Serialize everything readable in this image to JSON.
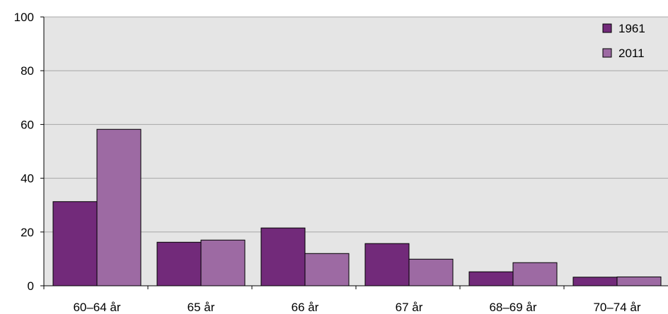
{
  "chart_data": {
    "type": "bar",
    "title": "",
    "xlabel": "",
    "ylabel": "",
    "ylim": [
      0,
      100
    ],
    "yticks": [
      0,
      20,
      40,
      60,
      80,
      100
    ],
    "grid": true,
    "legend_position": "top-right",
    "categories": [
      "60–64 år",
      "65 år",
      "66 år",
      "67 år",
      "68–69 år",
      "70–74 år"
    ],
    "series": [
      {
        "name": "1961",
        "color": "#722a7a",
        "values": [
          31.3,
          16.2,
          21.5,
          15.7,
          5.2,
          3.2
        ]
      },
      {
        "name": "2011",
        "color": "#9d6aa3",
        "values": [
          58.2,
          17.0,
          12.0,
          9.9,
          8.6,
          3.3
        ]
      }
    ]
  }
}
